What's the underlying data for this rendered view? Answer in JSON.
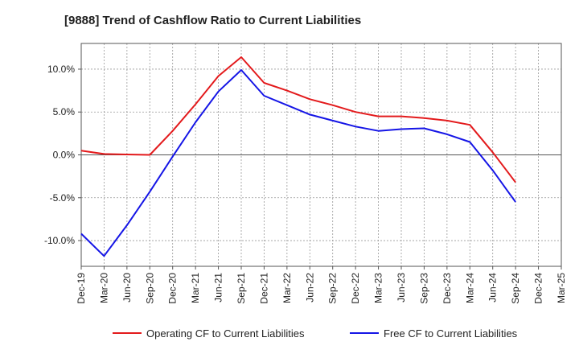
{
  "chart_data": {
    "type": "line",
    "title": "[9888]  Trend of Cashflow Ratio to Current Liabilities",
    "xlabel": "",
    "ylabel": "",
    "categories": [
      "Dec-19",
      "Mar-20",
      "Jun-20",
      "Sep-20",
      "Dec-20",
      "Mar-21",
      "Jun-21",
      "Sep-21",
      "Dec-21",
      "Mar-22",
      "Jun-22",
      "Sep-22",
      "Dec-22",
      "Mar-23",
      "Jun-23",
      "Sep-23",
      "Dec-23",
      "Mar-24",
      "Jun-24",
      "Sep-24",
      "Dec-24",
      "Mar-25"
    ],
    "ylim": [
      -13,
      13
    ],
    "yticks": [
      -10,
      -5,
      0,
      5,
      10
    ],
    "ytick_labels": [
      "-10.0%",
      "-5.0%",
      "0.0%",
      "5.0%",
      "10.0%"
    ],
    "grid": "dotted",
    "legend_position": "bottom",
    "series": [
      {
        "name": "Operating CF to Current Liabilities",
        "color": "#e31a1c",
        "values": [
          0.5,
          0.1,
          0.05,
          0.0,
          2.8,
          5.9,
          9.2,
          11.4,
          8.4,
          7.5,
          6.5,
          5.8,
          5.0,
          4.5,
          4.5,
          4.3,
          4.0,
          3.5,
          0.3,
          -3.2,
          null,
          null
        ]
      },
      {
        "name": "Free CF to Current Liabilities",
        "color": "#1515e6",
        "values": [
          -9.2,
          -11.8,
          -8.2,
          -4.3,
          -0.2,
          3.8,
          7.4,
          9.9,
          6.9,
          5.8,
          4.7,
          4.0,
          3.3,
          2.8,
          3.0,
          3.1,
          2.4,
          1.5,
          -1.8,
          -5.5,
          null,
          null
        ]
      }
    ]
  }
}
